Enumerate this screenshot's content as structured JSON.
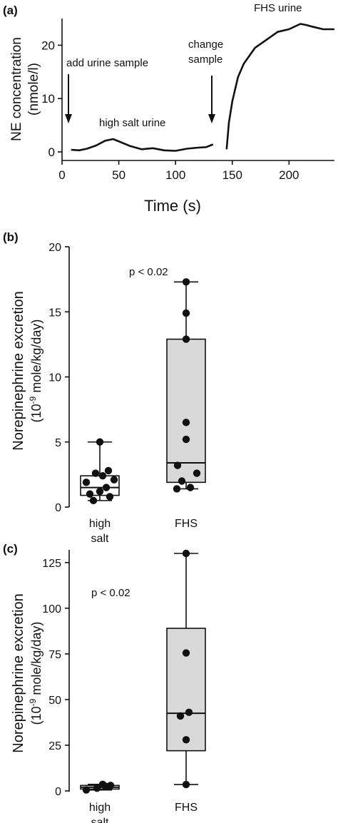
{
  "chart_data": [
    {
      "type": "line",
      "panel_label": "(a)",
      "title": "",
      "xlabel": "Time (s)",
      "ylabel_line1": "NE concentration",
      "ylabel_line2": "(nmole/l)",
      "xlim": [
        0,
        240
      ],
      "ylim": [
        0,
        25
      ],
      "xticks": [
        0,
        50,
        100,
        150,
        200
      ],
      "yticks": [
        0,
        10,
        20
      ],
      "grid": false,
      "series": [
        {
          "segment": "high salt",
          "x": [
            8,
            15,
            22,
            30,
            38,
            45,
            52,
            60,
            70,
            80,
            90,
            100,
            110,
            120,
            127,
            133
          ],
          "y": [
            0.4,
            0.3,
            0.6,
            1.2,
            2.1,
            2.4,
            1.8,
            1.1,
            0.5,
            0.7,
            0.3,
            0.2,
            0.6,
            0.8,
            0.9,
            1.4
          ]
        },
        {
          "segment": "FHS",
          "x": [
            145,
            147,
            150,
            155,
            160,
            165,
            170,
            180,
            190,
            200,
            210,
            215,
            220,
            230,
            240
          ],
          "y": [
            0.5,
            5.5,
            9.5,
            14.0,
            16.5,
            18.0,
            19.5,
            21.0,
            22.5,
            23.0,
            24.0,
            23.8,
            23.5,
            23.0,
            23.0
          ]
        }
      ],
      "annotations": [
        {
          "text": "add urine sample",
          "arrow_x": 5
        },
        {
          "text_line1": "change",
          "text_line2": "sample",
          "arrow_x": 133
        },
        {
          "text": "high salt urine"
        },
        {
          "text": "FHS urine"
        }
      ]
    },
    {
      "type": "box",
      "panel_label": "(b)",
      "ylabel_line1": "Norepinephrine excretion",
      "ylabel_pre": "(10",
      "ylabel_sup": "-9",
      "ylabel_post": " mole/kg/day)",
      "ylim": [
        0,
        20
      ],
      "yticks": [
        0,
        5,
        10,
        15,
        20
      ],
      "annotation": "p < 0.02",
      "groups": [
        {
          "label_line1": "high",
          "label_line2": "salt",
          "min": 0.5,
          "q1": 0.9,
          "median": 1.5,
          "q3": 2.4,
          "max": 5.0,
          "points": [
            0.5,
            0.8,
            1.0,
            1.2,
            1.5,
            1.9,
            2.1,
            2.4,
            2.6,
            2.8,
            5.0
          ]
        },
        {
          "label_line1": "FHS",
          "label_line2": "",
          "min": 1.4,
          "q1": 1.9,
          "median": 3.4,
          "q3": 12.9,
          "max": 17.3,
          "points": [
            1.4,
            1.5,
            2.0,
            2.6,
            3.2,
            5.2,
            6.5,
            12.9,
            14.9,
            17.3
          ]
        }
      ]
    },
    {
      "type": "box",
      "panel_label": "(c)",
      "ylabel_line1": "Norepinephrine excretion",
      "ylabel_pre": "(10",
      "ylabel_sup": "-9",
      "ylabel_post": " mole/kg/day)",
      "ylim": [
        0,
        130
      ],
      "yticks": [
        0,
        25,
        50,
        75,
        100,
        125
      ],
      "annotation": "p < 0.02",
      "groups": [
        {
          "label_line1": "high",
          "label_line2": "salt",
          "min": 0.5,
          "q1": 1.0,
          "median": 2.0,
          "q3": 3.0,
          "max": 3.6,
          "points": [
            0.5,
            1.5,
            2.5,
            3.0,
            3.6
          ]
        },
        {
          "label_line1": "FHS",
          "label_line2": "",
          "min": 3.5,
          "q1": 22.0,
          "median": 42.5,
          "q3": 89.0,
          "max": 130.0,
          "points": [
            3.5,
            28.0,
            41.0,
            43.0,
            75.5,
            130.0
          ]
        }
      ]
    }
  ]
}
